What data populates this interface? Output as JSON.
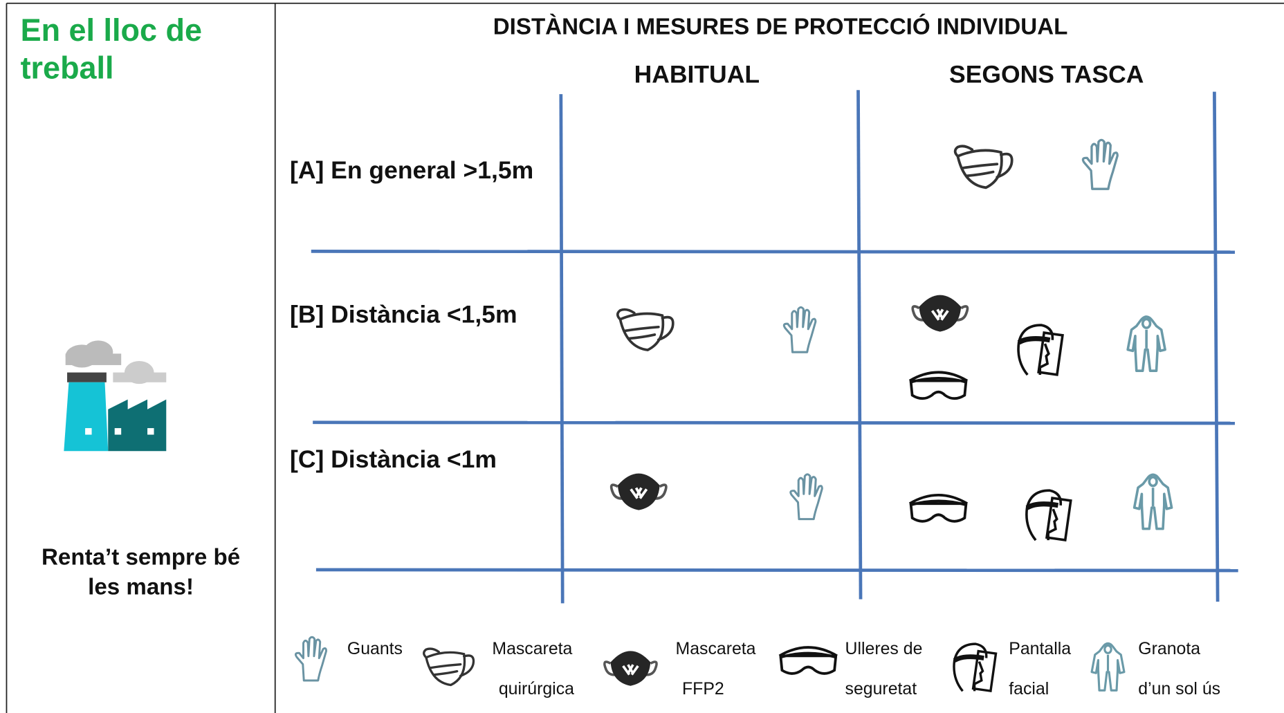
{
  "sidebar": {
    "title": [
      "En el lloc de",
      "treball"
    ],
    "footer": [
      "Renta’t sempre bé",
      "les mans!"
    ]
  },
  "header": {
    "title": "DISTÀNCIA I MESURES DE PROTECCIÓ INDIVIDUAL",
    "columns": [
      "HABITUAL",
      "SEGONS TASCA"
    ]
  },
  "rows": [
    "[A] En general >1,5m",
    "[B] Distància <1,5m",
    "[C] Distància <1m"
  ],
  "legend": [
    [
      "Guants"
    ],
    [
      "Mascareta",
      "quirúrgica"
    ],
    [
      "Mascareta",
      "FFP2"
    ],
    [
      "Ulleres de",
      "seguretat"
    ],
    [
      "Pantalla",
      "facial"
    ],
    [
      "Granota",
      "d’un sol ús"
    ]
  ]
}
